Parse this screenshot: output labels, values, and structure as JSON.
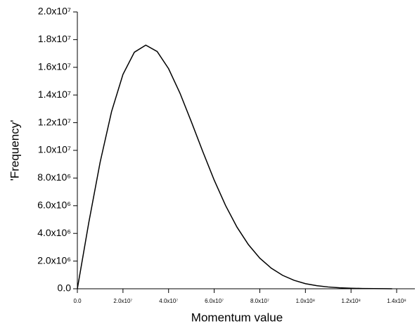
{
  "chart_data": {
    "type": "line",
    "x_label": "Momentum value",
    "y_label": "'Frequency'",
    "x": [
      0,
      5000000,
      10000000,
      15000000,
      20000000,
      25000000,
      30000000,
      35000000,
      40000000,
      45000000,
      50000000,
      55000000,
      60000000,
      65000000,
      70000000,
      75000000,
      80000000,
      85000000,
      90000000,
      95000000,
      100000000,
      105000000,
      110000000,
      115000000,
      120000000,
      125000000,
      130000000,
      135000000,
      138000000
    ],
    "series": [
      {
        "color": "#000000",
        "values": [
          0,
          4770000,
          9150000,
          12800000,
          15490000,
          17090000,
          17600000,
          17140000,
          15900000,
          14130000,
          12060000,
          9910000,
          7850000,
          6010000,
          4450000,
          3190000,
          2210000,
          1490000,
          970000,
          610000,
          370000,
          220000,
          130000,
          70000,
          40000,
          20000,
          10000,
          5000,
          3000
        ]
      }
    ],
    "xlim": [
      0,
      148000000
    ],
    "ylim": [
      0,
      20000000
    ],
    "xticks": [
      {
        "value": 0,
        "label": "0.0"
      },
      {
        "value": 20000000,
        "label": "2.0x10⁷"
      },
      {
        "value": 40000000,
        "label": "4.0x10⁷"
      },
      {
        "value": 60000000,
        "label": "6.0x10⁷"
      },
      {
        "value": 80000000,
        "label": "8.0x10⁷"
      },
      {
        "value": 100000000,
        "label": "1.0x10⁸"
      },
      {
        "value": 120000000,
        "label": "1.2x10⁸"
      },
      {
        "value": 140000000,
        "label": "1.4x10⁸"
      }
    ],
    "yticks": [
      {
        "value": 0,
        "label": "0.0"
      },
      {
        "value": 2000000,
        "label": "2.0x10⁶"
      },
      {
        "value": 4000000,
        "label": "4.0x10⁶"
      },
      {
        "value": 6000000,
        "label": "6.0x10⁶"
      },
      {
        "value": 8000000,
        "label": "8.0x10⁶"
      },
      {
        "value": 10000000,
        "label": "1.0x10⁷"
      },
      {
        "value": 12000000,
        "label": "1.2x10⁷"
      },
      {
        "value": 14000000,
        "label": "1.4x10⁷"
      },
      {
        "value": 16000000,
        "label": "1.6x10⁷"
      },
      {
        "value": 18000000,
        "label": "1.8x10⁷"
      },
      {
        "value": 20000000,
        "label": "2.0x10⁷"
      }
    ],
    "grid": false
  }
}
